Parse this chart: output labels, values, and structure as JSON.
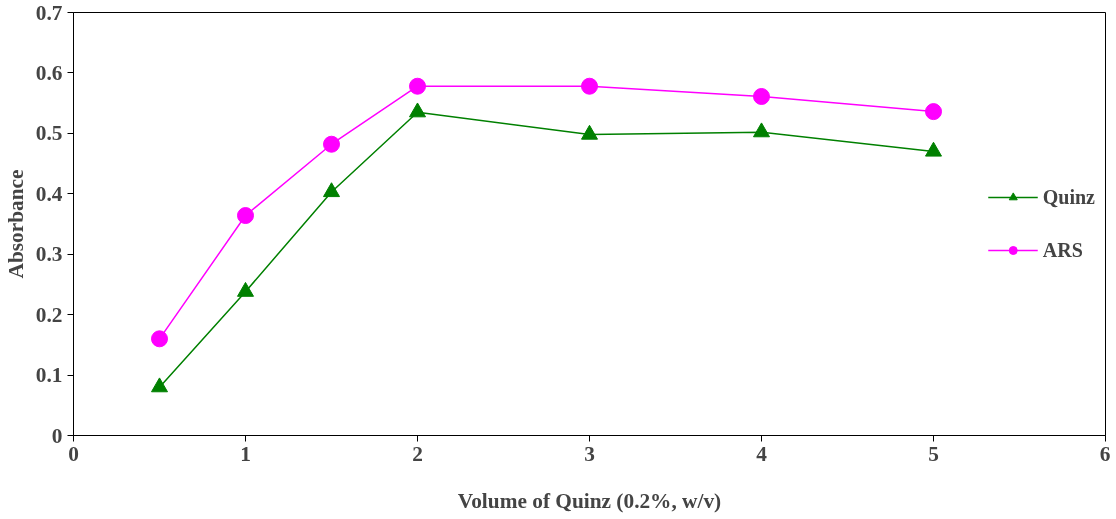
{
  "chart_data": {
    "type": "line",
    "xlabel": "Volume of Quinz (0.2%, w/v)",
    "ylabel": "Absorbance",
    "x": [
      0.5,
      1,
      1.5,
      2,
      3,
      4,
      5
    ],
    "series": [
      {
        "name": "Quinz",
        "color": "#008000",
        "marker": "triangle",
        "values": [
          0.08,
          0.238,
          0.403,
          0.535,
          0.498,
          0.502,
          0.47
        ]
      },
      {
        "name": "ARS",
        "color": "#ff00ff",
        "marker": "circle",
        "values": [
          0.16,
          0.364,
          0.482,
          0.578,
          0.578,
          0.561,
          0.536
        ]
      }
    ],
    "xlim": [
      0,
      6
    ],
    "xticks": [
      0,
      1,
      2,
      3,
      4,
      5,
      6
    ],
    "ylim": [
      0,
      0.7
    ],
    "yticks": [
      0,
      0.1,
      0.2,
      0.3,
      0.4,
      0.5,
      0.6,
      0.7
    ],
    "grid": false,
    "legend": "right",
    "line_style": "solid"
  }
}
